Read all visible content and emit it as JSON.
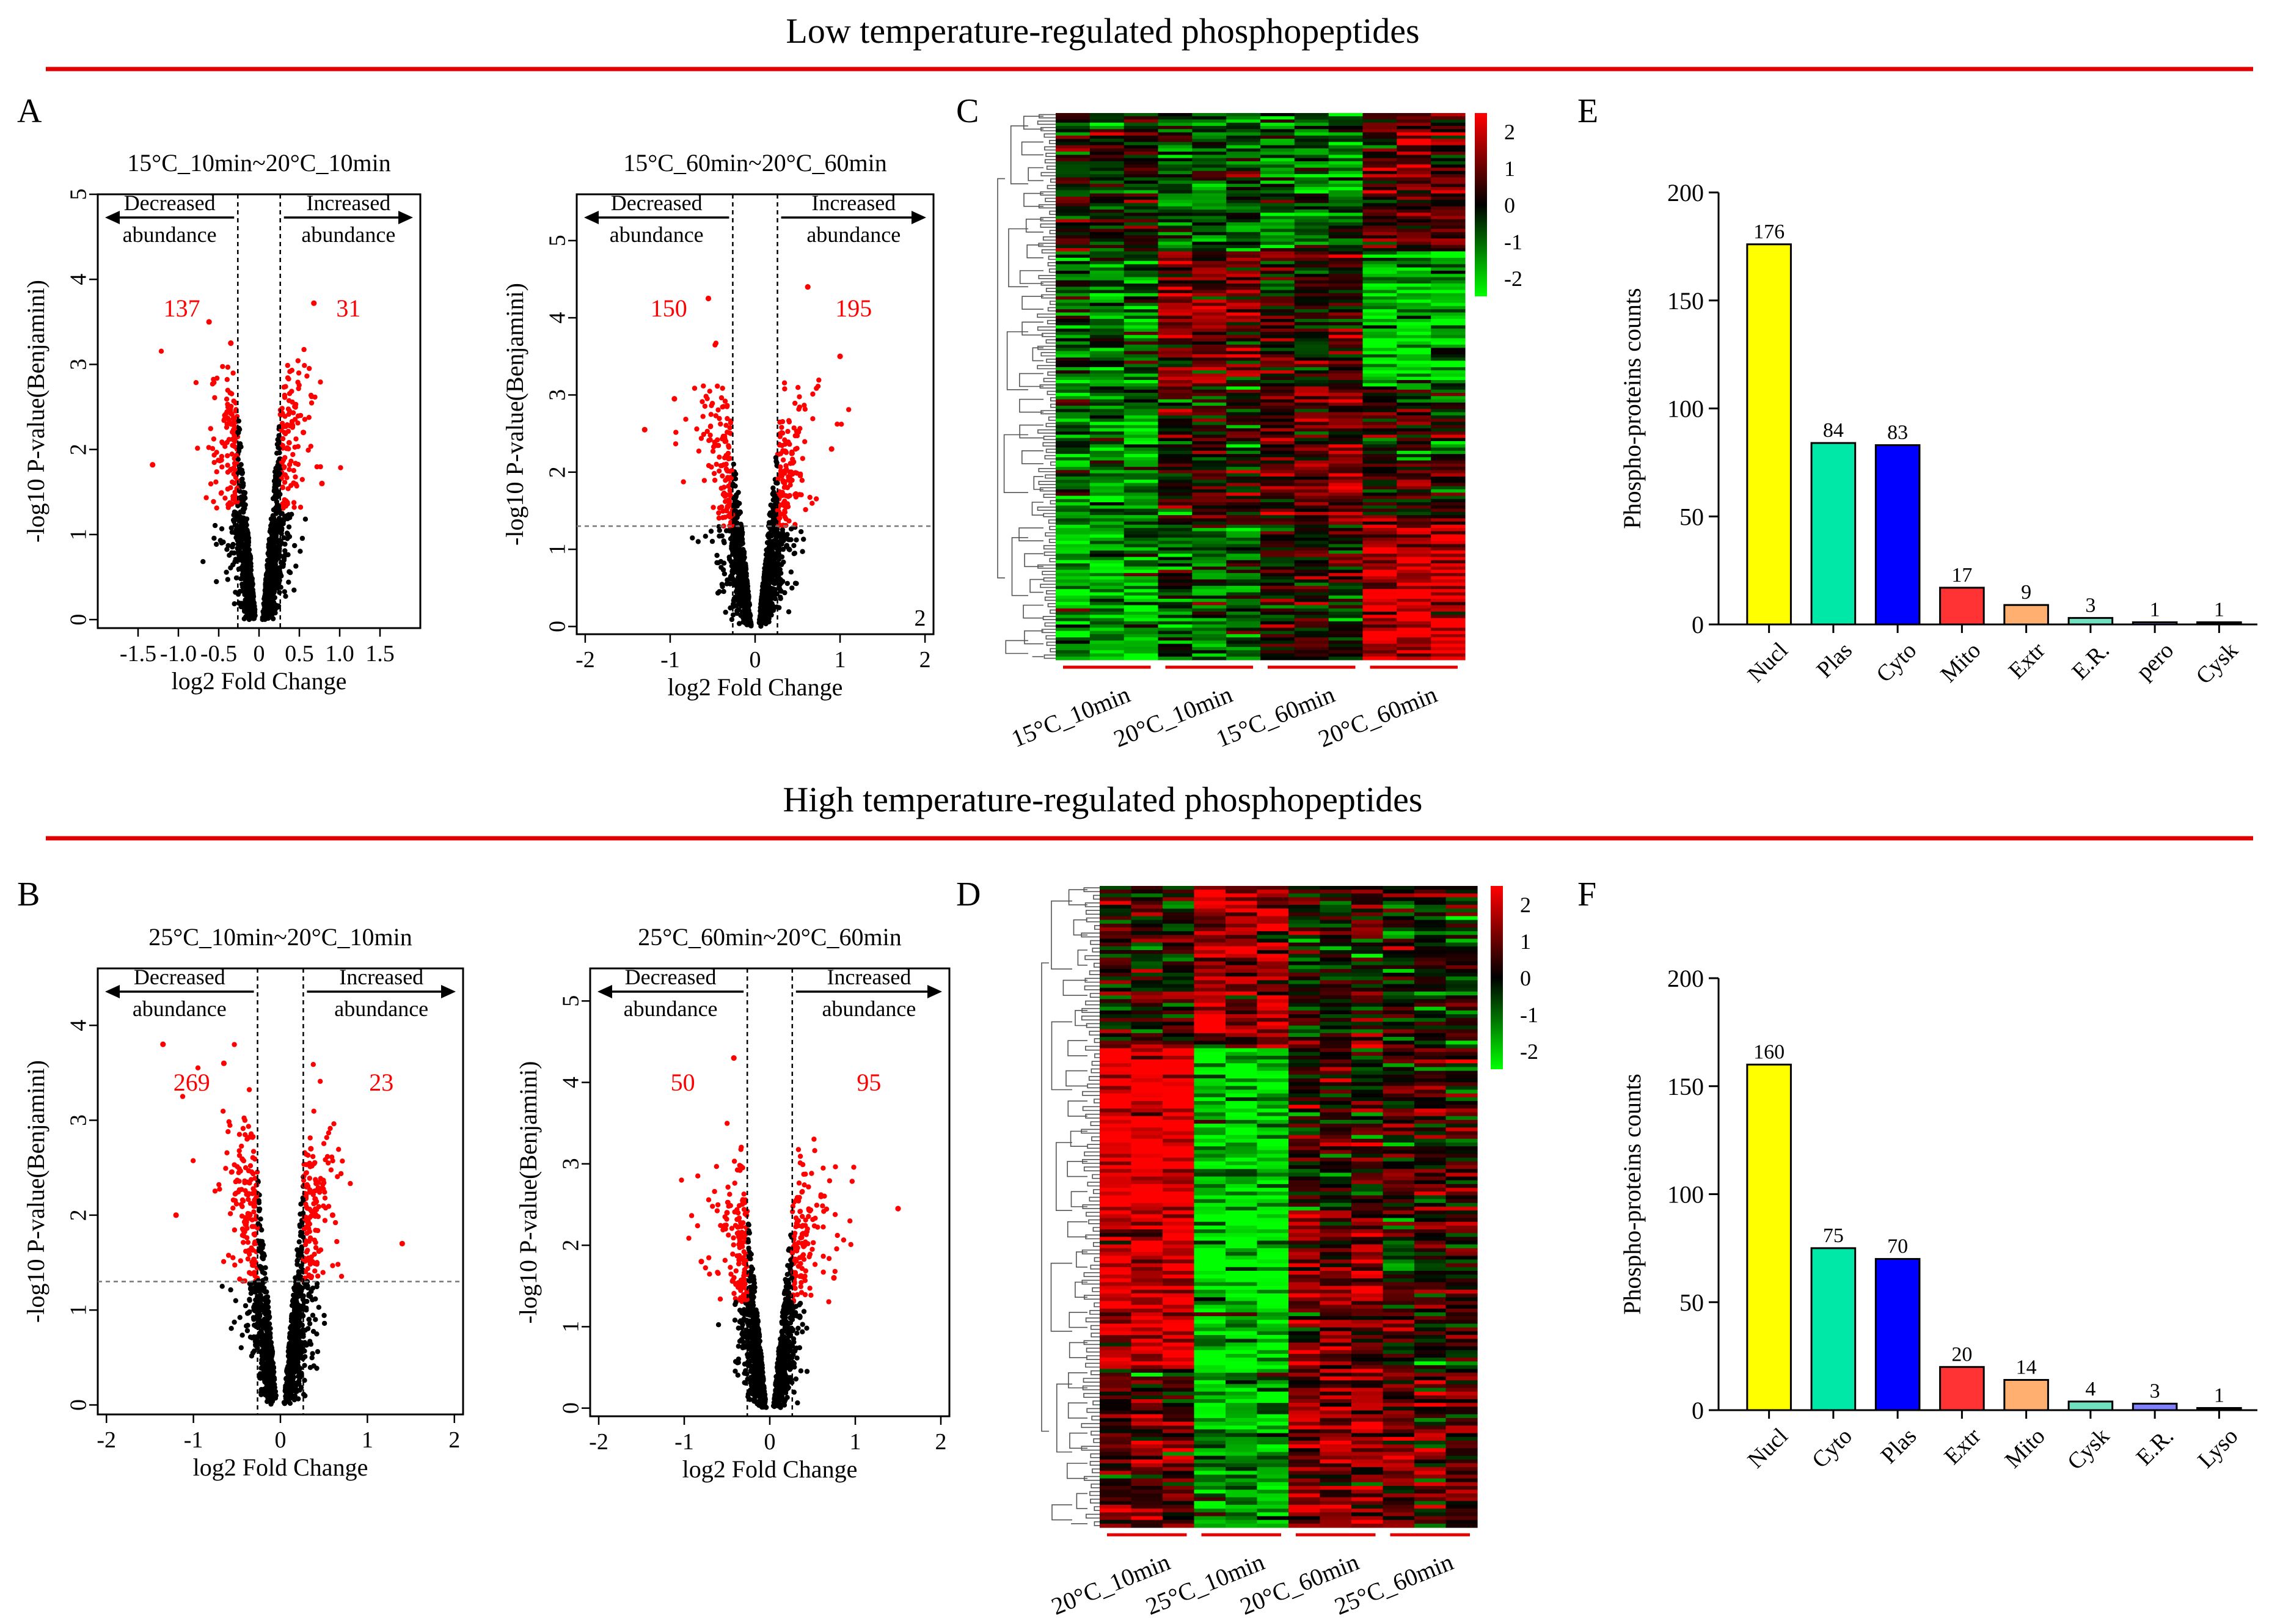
{
  "sections": {
    "low_title": "Low temperature-regulated phosphopeptides",
    "high_title": "High temperature-regulated phosphopeptides"
  },
  "panel_letters": {
    "A": "A",
    "B": "B",
    "C": "C",
    "D": "D",
    "E": "E",
    "F": "F"
  },
  "common": {
    "xlabel": "log2 Fold Change",
    "ylabel": "-log10 P-value(Benjamini)",
    "decreased": [
      "Decreased",
      "abundance"
    ],
    "increased": [
      "Increased",
      "abundance"
    ],
    "bar_ylabel": "Phospho-proteins counts"
  },
  "colors": {
    "significant": "#ff0000",
    "nonsignificant": "#000000",
    "section_rule": "#e00000",
    "heat_high": "#ff0000",
    "heat_mid": "#000000",
    "heat_low": "#00ff00"
  },
  "chart_data": [
    {
      "id": "A1",
      "type": "scatter",
      "title": "15°C_10min~20°C_10min",
      "xlim": [
        -2,
        2
      ],
      "ylim": [
        -0.1,
        5
      ],
      "xticks": [
        -1.5,
        -1.0,
        -0.5,
        0,
        0.5,
        1.0,
        1.5
      ],
      "xtick_labels": [
        "-1.5",
        "-1.0",
        "-0.5",
        "0",
        "0.5",
        "1.0",
        "1.5"
      ],
      "yticks": [
        0,
        1,
        2,
        3,
        4,
        5
      ],
      "cutoff_x": 0.263,
      "cutoff_y": null,
      "decreased_count": "137",
      "increased_count": "31",
      "extra_label": "",
      "spread": 0.9,
      "sig_left": [
        [
          -1.32,
          1.82
        ],
        [
          -0.62,
          3.5
        ],
        [
          -0.35,
          3.25
        ]
      ],
      "sig_right": [
        [
          0.68,
          3.72
        ],
        [
          0.55,
          2.2
        ],
        [
          0.78,
          1.6
        ]
      ]
    },
    {
      "id": "A2",
      "type": "scatter",
      "title": "15°C_60min~20°C_60min",
      "xlim": [
        -2.1,
        2.1
      ],
      "ylim": [
        -0.1,
        5.6
      ],
      "xticks": [
        -2,
        -1,
        0,
        1,
        2
      ],
      "xtick_labels": [
        "-2",
        "-1",
        "0",
        "1",
        "2"
      ],
      "yticks": [
        0,
        1,
        2,
        3,
        4,
        5
      ],
      "cutoff_x": 0.263,
      "cutoff_y": 1.3,
      "decreased_count": "150",
      "increased_count": "195",
      "extra_label": "2",
      "spread": 1.0,
      "sig_left": [
        [
          -1.3,
          2.55
        ],
        [
          -0.55,
          4.25
        ],
        [
          -0.95,
          2.95
        ]
      ],
      "sig_right": [
        [
          0.62,
          4.4
        ],
        [
          1.0,
          3.5
        ],
        [
          0.9,
          2.3
        ]
      ]
    },
    {
      "id": "B1",
      "type": "scatter",
      "title": "25°C_10min~20°C_10min",
      "xlim": [
        -2.1,
        2.1
      ],
      "ylim": [
        -0.1,
        4.6
      ],
      "xticks": [
        -2,
        -1,
        0,
        1,
        2
      ],
      "xtick_labels": [
        "-2",
        "-1",
        "0",
        "1",
        "2"
      ],
      "yticks": [
        0,
        1,
        2,
        3,
        4
      ],
      "cutoff_x": 0.263,
      "cutoff_y": 1.3,
      "decreased_count": "269",
      "increased_count": "23",
      "extra_label": "",
      "spread": 1.0,
      "sig_left": [
        [
          -1.35,
          3.8
        ],
        [
          -0.65,
          3.6
        ],
        [
          -1.2,
          2.0
        ]
      ],
      "sig_right": [
        [
          1.4,
          1.7
        ],
        [
          0.6,
          2.0
        ],
        [
          0.35,
          2.7
        ]
      ]
    },
    {
      "id": "B2",
      "type": "scatter",
      "title": "25°C_60min~20°C_60min",
      "xlim": [
        -2.1,
        2.1
      ],
      "ylim": [
        -0.1,
        5.4
      ],
      "xticks": [
        -2,
        -1,
        0,
        1,
        2
      ],
      "xtick_labels": [
        "-2",
        "-1",
        "0",
        "1",
        "2"
      ],
      "yticks": [
        0,
        1,
        2,
        3,
        4,
        5
      ],
      "cutoff_x": 0.263,
      "cutoff_y": null,
      "decreased_count": "50",
      "increased_count": "95",
      "extra_label": "",
      "spread": 0.85,
      "sig_left": [
        [
          -0.42,
          4.3
        ],
        [
          -0.8,
          1.8
        ],
        [
          -0.5,
          2.4
        ]
      ],
      "sig_right": [
        [
          1.5,
          2.45
        ],
        [
          0.75,
          1.6
        ],
        [
          0.6,
          2.6
        ]
      ]
    },
    {
      "id": "C",
      "type": "heatmap",
      "columns": [
        "15°C_10min",
        "20°C_10min",
        "15°C_60min",
        "20°C_60min"
      ],
      "reps_per_group": 3,
      "rows": 170,
      "legend_ticks": [
        2,
        1,
        0,
        -1,
        -2
      ],
      "legend_range": [
        -2.5,
        2.5
      ],
      "group_profiles": [
        [
          0,
          -0.3,
          -0.4,
          0.3
        ],
        [
          -0.4,
          0.5,
          0.1,
          -0.7
        ],
        [
          -0.5,
          0.1,
          0.4,
          0.1
        ],
        [
          -0.6,
          -0.3,
          0.1,
          0.8
        ]
      ]
    },
    {
      "id": "D",
      "type": "heatmap",
      "columns": [
        "20°C_10min",
        "25°C_10min",
        "20°C_60min",
        "25°C_60min"
      ],
      "reps_per_group": 3,
      "rows": 170,
      "legend_ticks": [
        2,
        1,
        0,
        -1,
        -2
      ],
      "legend_range": [
        -2.5,
        2.5
      ],
      "group_profiles": [
        [
          0,
          0.6,
          0,
          0
        ],
        [
          1.0,
          -0.8,
          0.1,
          0.2
        ],
        [
          0.8,
          -0.9,
          0.4,
          0.1
        ],
        [
          0.3,
          -0.6,
          0.5,
          0.3
        ]
      ]
    },
    {
      "id": "E",
      "type": "bar",
      "categories": [
        "Nucl",
        "Plas",
        "Cyto",
        "Mito",
        "Extr",
        "E.R.",
        "pero",
        "Cysk"
      ],
      "values": [
        176,
        84,
        83,
        17,
        9,
        3,
        1,
        1
      ],
      "colors": [
        "#ffff00",
        "#00e8a8",
        "#0000ff",
        "#ff3333",
        "#ffb070",
        "#70e0c0",
        "#8080ff",
        "#000000"
      ],
      "ylim": [
        0,
        200
      ],
      "yticks": [
        0,
        50,
        100,
        150,
        200
      ],
      "ylabel": "Phospho-proteins counts"
    },
    {
      "id": "F",
      "type": "bar",
      "categories": [
        "Nucl",
        "Cyto",
        "Plas",
        "Extr",
        "Mito",
        "Cysk",
        "E.R.",
        "Lyso"
      ],
      "values": [
        160,
        75,
        70,
        20,
        14,
        4,
        3,
        1
      ],
      "colors": [
        "#ffff00",
        "#00e8a8",
        "#0000ff",
        "#ff3333",
        "#ffb070",
        "#70e0c0",
        "#8080ff",
        "#000000"
      ],
      "ylim": [
        0,
        200
      ],
      "yticks": [
        0,
        50,
        100,
        150,
        200
      ],
      "ylabel": "Phospho-proteins counts"
    }
  ]
}
